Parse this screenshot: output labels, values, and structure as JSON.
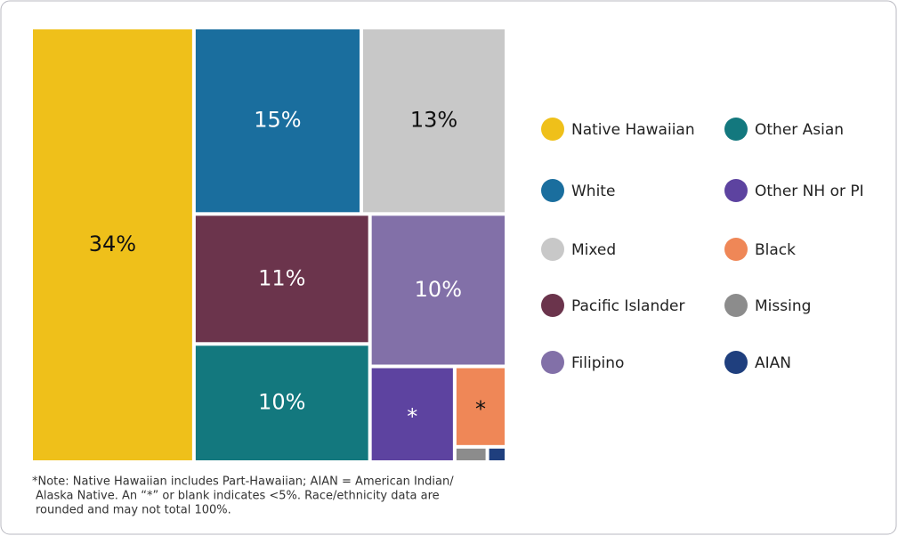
{
  "chart_data": {
    "type": "treemap",
    "categories": [
      "Native Hawaiian",
      "White",
      "Mixed",
      "Pacific Islander",
      "Filipino",
      "Other Asian",
      "Other NH or PI",
      "Black",
      "Missing",
      "AIAN"
    ],
    "values": [
      34,
      15,
      13,
      11,
      10,
      10,
      3.9,
      2,
      0.24,
      0.14
    ],
    "value_labels": [
      "34%",
      "15%",
      "13%",
      "11%",
      "10%",
      "10%",
      "*",
      "*",
      null,
      null
    ],
    "colors": [
      "#efc01a",
      "#1a6e9e",
      "#c8c8c8",
      "#6b344c",
      "#8270a8",
      "#13787e",
      "#5d43a0",
      "#ef8757",
      "#8c8c8c",
      "#1f3f7e"
    ],
    "note": [
      "*Note: Native Hawaiian includes Part-Hawaiian; AIAN = American Indian/",
      "Alaska Native. An “*” or blank indicates <5%. Race/ethnicity data are",
      "rounded and may not total 100%."
    ]
  }
}
